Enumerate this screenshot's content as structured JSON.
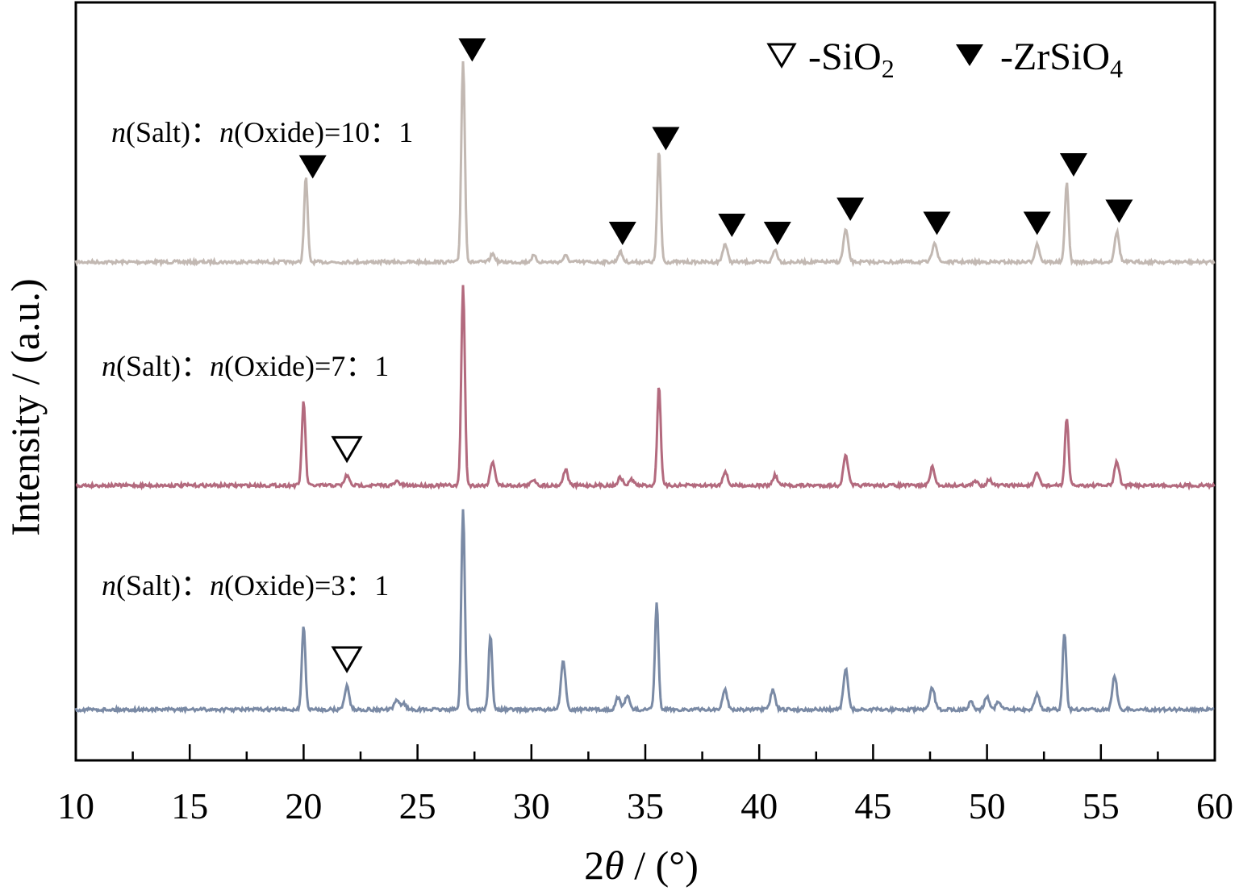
{
  "chart_data": {
    "type": "line",
    "xlabel_prefix": "2",
    "xlabel_theta": "θ",
    "xlabel_suffix": " / (°)",
    "ylabel": "Intensity / (a.u.)",
    "xlim": [
      10,
      60
    ],
    "xticks": [
      "10",
      "15",
      "20",
      "25",
      "30",
      "35",
      "40",
      "45",
      "50",
      "55",
      "60"
    ],
    "grid": false,
    "legend": {
      "placement": "top-right",
      "items": [
        {
          "symbol": "open-triangle-down",
          "prefix": "-SiO",
          "subscript": "2"
        },
        {
          "symbol": "filled-triangle-down",
          "prefix": "-ZrSiO",
          "subscript": "4"
        }
      ]
    },
    "series": [
      {
        "name_n1": "n",
        "name_mid": "(Salt)：",
        "name_n2": "n",
        "name_end": "(Oxide)=10：1",
        "color": "#c2b8b2",
        "baseline": 0.0,
        "peaks": [
          {
            "x": 20.1,
            "h": 0.42
          },
          {
            "x": 27.0,
            "h": 1.0
          },
          {
            "x": 28.3,
            "h": 0.04
          },
          {
            "x": 30.1,
            "h": 0.03
          },
          {
            "x": 31.5,
            "h": 0.03
          },
          {
            "x": 33.9,
            "h": 0.05
          },
          {
            "x": 35.6,
            "h": 0.55
          },
          {
            "x": 38.5,
            "h": 0.09
          },
          {
            "x": 40.7,
            "h": 0.06
          },
          {
            "x": 43.8,
            "h": 0.16
          },
          {
            "x": 47.7,
            "h": 0.1
          },
          {
            "x": 52.2,
            "h": 0.09
          },
          {
            "x": 53.5,
            "h": 0.4
          },
          {
            "x": 55.7,
            "h": 0.15
          }
        ],
        "markers": [
          {
            "x": 20.4,
            "y": 0.47,
            "type": "filled"
          },
          {
            "x": 27.4,
            "y": 1.05,
            "type": "filled"
          },
          {
            "x": 35.9,
            "y": 0.61,
            "type": "filled"
          },
          {
            "x": 34.0,
            "y": 0.14,
            "type": "filled"
          },
          {
            "x": 38.8,
            "y": 0.18,
            "type": "filled"
          },
          {
            "x": 40.8,
            "y": 0.14,
            "type": "filled"
          },
          {
            "x": 44.0,
            "y": 0.26,
            "type": "filled"
          },
          {
            "x": 47.8,
            "y": 0.19,
            "type": "filled"
          },
          {
            "x": 52.2,
            "y": 0.19,
            "type": "filled"
          },
          {
            "x": 53.8,
            "y": 0.48,
            "type": "filled"
          },
          {
            "x": 55.8,
            "y": 0.25,
            "type": "filled"
          }
        ]
      },
      {
        "name_n1": "n",
        "name_mid": "(Salt)：",
        "name_n2": "n",
        "name_end": "(Oxide)=7：1",
        "color": "#b36a7e",
        "baseline": 0.0,
        "peaks": [
          {
            "x": 20.0,
            "h": 0.42
          },
          {
            "x": 21.9,
            "h": 0.05
          },
          {
            "x": 24.1,
            "h": 0.02
          },
          {
            "x": 27.0,
            "h": 1.0
          },
          {
            "x": 28.3,
            "h": 0.12
          },
          {
            "x": 30.1,
            "h": 0.03
          },
          {
            "x": 31.5,
            "h": 0.08
          },
          {
            "x": 33.9,
            "h": 0.04
          },
          {
            "x": 34.4,
            "h": 0.03
          },
          {
            "x": 35.6,
            "h": 0.5
          },
          {
            "x": 38.5,
            "h": 0.07
          },
          {
            "x": 40.7,
            "h": 0.05
          },
          {
            "x": 43.8,
            "h": 0.15
          },
          {
            "x": 47.6,
            "h": 0.09
          },
          {
            "x": 49.5,
            "h": 0.02
          },
          {
            "x": 50.1,
            "h": 0.03
          },
          {
            "x": 52.2,
            "h": 0.06
          },
          {
            "x": 53.5,
            "h": 0.34
          },
          {
            "x": 55.7,
            "h": 0.12
          }
        ],
        "markers": [
          {
            "x": 21.9,
            "y": 0.18,
            "type": "open"
          }
        ]
      },
      {
        "name_n1": "n",
        "name_mid": "(Salt)：",
        "name_n2": "n",
        "name_end": "(Oxide)=3：1",
        "color": "#7a8aa5",
        "baseline": 0.0,
        "peaks": [
          {
            "x": 20.0,
            "h": 0.42
          },
          {
            "x": 21.9,
            "h": 0.12
          },
          {
            "x": 24.1,
            "h": 0.05
          },
          {
            "x": 24.4,
            "h": 0.03
          },
          {
            "x": 27.0,
            "h": 1.0
          },
          {
            "x": 28.2,
            "h": 0.37
          },
          {
            "x": 31.4,
            "h": 0.24
          },
          {
            "x": 33.8,
            "h": 0.06
          },
          {
            "x": 34.2,
            "h": 0.07
          },
          {
            "x": 35.5,
            "h": 0.53
          },
          {
            "x": 38.5,
            "h": 0.1
          },
          {
            "x": 40.6,
            "h": 0.1
          },
          {
            "x": 43.8,
            "h": 0.2
          },
          {
            "x": 47.6,
            "h": 0.11
          },
          {
            "x": 49.3,
            "h": 0.04
          },
          {
            "x": 50.0,
            "h": 0.07
          },
          {
            "x": 50.5,
            "h": 0.04
          },
          {
            "x": 52.2,
            "h": 0.08
          },
          {
            "x": 53.4,
            "h": 0.39
          },
          {
            "x": 55.6,
            "h": 0.17
          }
        ],
        "markers": [
          {
            "x": 21.9,
            "y": 0.25,
            "type": "open"
          }
        ]
      }
    ]
  }
}
